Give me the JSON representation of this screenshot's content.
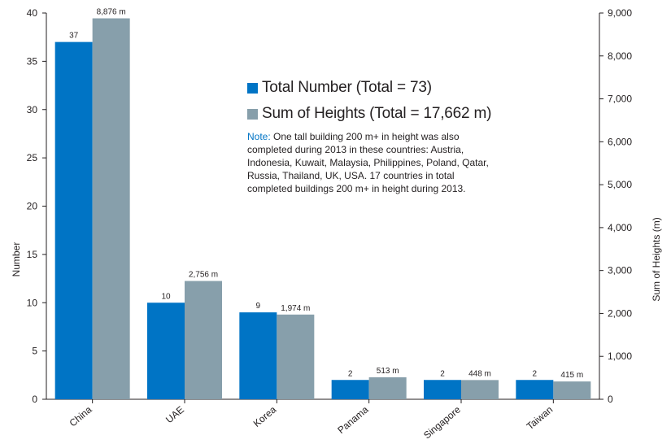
{
  "chart_data": {
    "type": "bar",
    "categories": [
      "China",
      "UAE",
      "Korea",
      "Panama",
      "Singapore",
      "Taiwan"
    ],
    "series": [
      {
        "name": "Total Number (Total = 73)",
        "axis": "left",
        "color": "#0074c5",
        "values": [
          37,
          10,
          9,
          2,
          2,
          2
        ],
        "labels": [
          "37",
          "10",
          "9",
          "2",
          "2",
          "2"
        ]
      },
      {
        "name": "Sum of Heights (Total = 17,662 m)",
        "axis": "right",
        "color": "#879fab",
        "values": [
          8876,
          2756,
          1974,
          513,
          448,
          415
        ],
        "labels": [
          "8,876 m",
          "2,756 m",
          "1,974 m",
          "513 m",
          "448 m",
          "415 m"
        ]
      }
    ],
    "ylabel": "Number",
    "ylim": [
      0,
      40
    ],
    "yticks": [
      "0",
      "5",
      "10",
      "15",
      "20",
      "25",
      "30",
      "35",
      "40"
    ],
    "y2label": "Sum of Heights (m)",
    "y2lim": [
      0,
      9000
    ],
    "y2ticks": [
      "0",
      "1,000",
      "2,000",
      "3,000",
      "4,000",
      "5,000",
      "6,000",
      "7,000",
      "8,000",
      "9,000"
    ],
    "legend_position": "top-center",
    "grid": false,
    "note_label": "Note:",
    "note_text": " One tall building 200 m+ in height was also completed during 2013 in these countries:  Austria, Indonesia, Kuwait, Malaysia, Philippines, Poland, Qatar, Russia, Thailand, UK, USA. 17 countries in total completed buildings 200 m+ in height during 2013."
  }
}
